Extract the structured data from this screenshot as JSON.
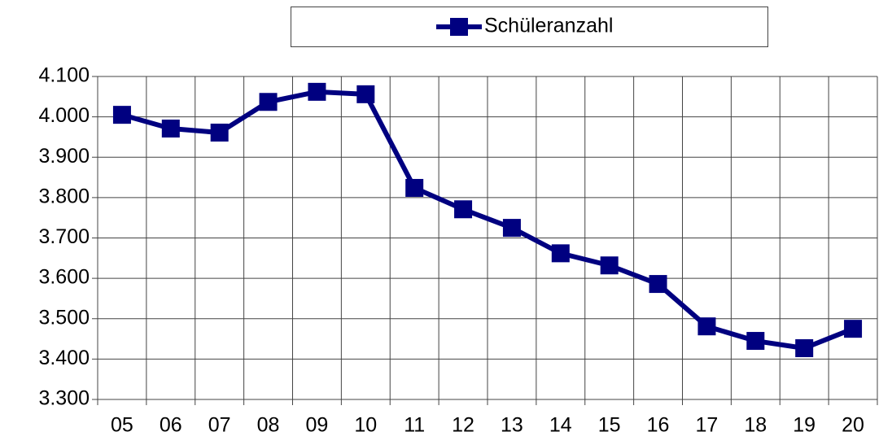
{
  "chart_data": {
    "type": "line",
    "categories": [
      "05",
      "06",
      "07",
      "08",
      "09",
      "10",
      "11",
      "12",
      "13",
      "14",
      "15",
      "16",
      "17",
      "18",
      "19",
      "20"
    ],
    "series": [
      {
        "name": "Schüleranzahl",
        "color": "#000080",
        "values": [
          4005,
          3971,
          3961,
          4037,
          4062,
          4056,
          3824,
          3771,
          3725,
          3662,
          3632,
          3586,
          3481,
          3445,
          3427,
          3475
        ]
      }
    ],
    "ylim": [
      3300,
      4100
    ],
    "yticks": [
      {
        "value": 3300,
        "label": "3.300"
      },
      {
        "value": 3400,
        "label": "3.400"
      },
      {
        "value": 3500,
        "label": "3.500"
      },
      {
        "value": 3600,
        "label": "3.600"
      },
      {
        "value": 3700,
        "label": "3.700"
      },
      {
        "value": 3800,
        "label": "3.800"
      },
      {
        "value": 3900,
        "label": "3.900"
      },
      {
        "value": 4000,
        "label": "4.000"
      },
      {
        "value": 4100,
        "label": "4.100"
      }
    ],
    "grid": true,
    "legend": "top"
  }
}
